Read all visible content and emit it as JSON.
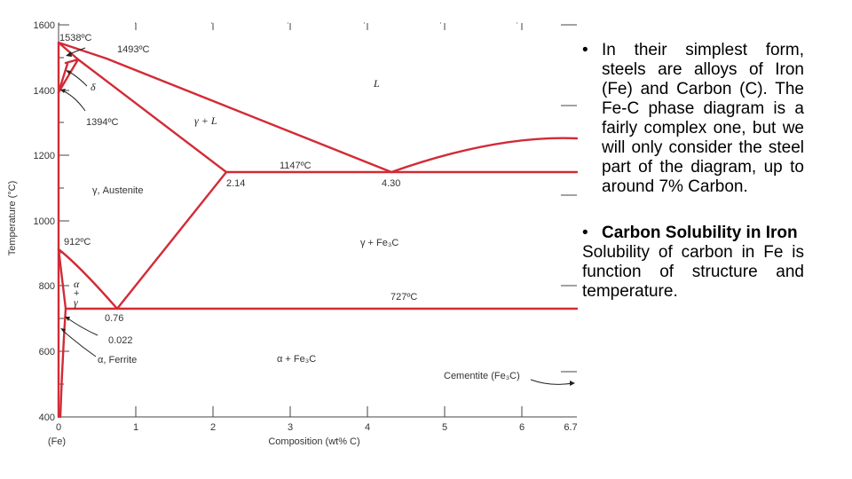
{
  "diagram": {
    "y_axis_title": "Temperature (°C)",
    "x_axis_title": "Composition (wt% C)",
    "y_ticks": [
      "1600",
      "1400",
      "1200",
      "1000",
      "800",
      "600",
      "400"
    ],
    "x_ticks": [
      "0",
      "1",
      "2",
      "3",
      "4",
      "5",
      "6",
      "6.7"
    ],
    "x_origin_label": "(Fe)",
    "labels": {
      "t1538": "1538ºC",
      "t1493": "1493ºC",
      "delta": "δ",
      "liquid": "L",
      "t1394": "1394ºC",
      "gamma_L": "γ + L",
      "t1147": "1147ºC",
      "c214": "2.14",
      "c430": "4.30",
      "austenite": "γ, Austenite",
      "t912": "912ºC",
      "gamma_fe3c": "γ + Fe₃C",
      "alpha_gamma_a": "α",
      "alpha_gamma_plus": "+",
      "alpha_gamma_g": "γ",
      "t727": "727ºC",
      "c076": "0.76",
      "c0022": "0.022",
      "ferrite": "α, Ferrite",
      "alpha_fe3c": "α + Fe₃C",
      "cementite": "Cementite (Fe₃C)"
    },
    "line_color": "#d22b36"
  },
  "text": {
    "bullet": "•",
    "p1": "In their simplest form, steels are alloys of Iron (Fe) and Carbon (C). The Fe-C phase diagram is a fairly complex one, but we will only consider the steel part of the diagram, up to around 7% Carbon.",
    "p2_heading": "Carbon Solubility in Iron",
    "p3": "Solubility of carbon in Fe is function of structure and temperature."
  }
}
